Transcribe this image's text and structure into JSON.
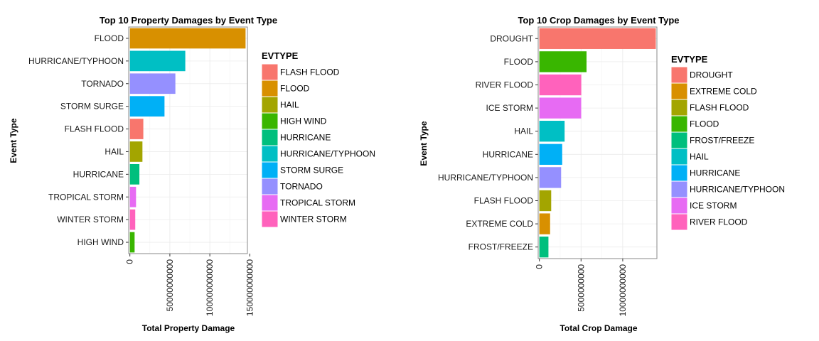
{
  "chart_data": [
    {
      "type": "bar",
      "orientation": "horizontal",
      "title": "Top 10 Property Damages by Event Type",
      "xlabel": "Total Property Damage",
      "ylabel": "Event Type",
      "categories": [
        "FLOOD",
        "HURRICANE/TYPHOON",
        "TORNADO",
        "STORM SURGE",
        "FLASH FLOOD",
        "HAIL",
        "HURRICANE",
        "TROPICAL STORM",
        "WINTER STORM",
        "HIGH WIND"
      ],
      "values": [
        144700000000,
        69300000000,
        56900000000,
        43300000000,
        16800000000,
        15700000000,
        11900000000,
        7700000000,
        6700000000,
        5900000000
      ],
      "colors": [
        "#D89000",
        "#00BFC4",
        "#9590FF",
        "#00B0F6",
        "#F8766D",
        "#A3A500",
        "#00BF7D",
        "#E76BF3",
        "#FF62BC",
        "#39B600"
      ],
      "xticks": [
        0,
        50000000000,
        100000000000,
        150000000000
      ],
      "xtick_labels": [
        "0",
        "50000000000",
        "100000000000",
        "150000000000"
      ],
      "xlim": [
        -1500000000,
        147000000000
      ],
      "grid": true,
      "legend": {
        "title": "EVTYPE",
        "position": "right",
        "items": [
          {
            "label": "FLASH FLOOD",
            "color": "#F8766D"
          },
          {
            "label": "FLOOD",
            "color": "#D89000"
          },
          {
            "label": "HAIL",
            "color": "#A3A500"
          },
          {
            "label": "HIGH WIND",
            "color": "#39B600"
          },
          {
            "label": "HURRICANE",
            "color": "#00BF7D"
          },
          {
            "label": "HURRICANE/TYPHOON",
            "color": "#00BFC4"
          },
          {
            "label": "STORM SURGE",
            "color": "#00B0F6"
          },
          {
            "label": "TORNADO",
            "color": "#9590FF"
          },
          {
            "label": "TROPICAL STORM",
            "color": "#E76BF3"
          },
          {
            "label": "WINTER STORM",
            "color": "#FF62BC"
          }
        ]
      }
    },
    {
      "type": "bar",
      "orientation": "horizontal",
      "title": "Top 10 Crop Damages by Event Type",
      "xlabel": "Total Crop Damage",
      "ylabel": "Event Type",
      "categories": [
        "DROUGHT",
        "FLOOD",
        "RIVER FLOOD",
        "ICE STORM",
        "HAIL",
        "HURRICANE",
        "HURRICANE/TYPHOON",
        "FLASH FLOOD",
        "EXTREME COLD",
        "FROST/FREEZE"
      ],
      "values": [
        13970000000,
        5660000000,
        5030000000,
        5020000000,
        3030000000,
        2740000000,
        2610000000,
        1420000000,
        1290000000,
        1090000000
      ],
      "colors": [
        "#F8766D",
        "#39B600",
        "#FF62BC",
        "#E76BF3",
        "#00BFC4",
        "#00B0F6",
        "#9590FF",
        "#A3A500",
        "#D89000",
        "#00BF7D"
      ],
      "xticks": [
        0,
        5000000000,
        10000000000
      ],
      "xtick_labels": [
        "0",
        "5000000000",
        "10000000000"
      ],
      "xlim": [
        -140000000,
        14100000000
      ],
      "grid": true,
      "legend": {
        "title": "EVTYPE",
        "position": "right",
        "items": [
          {
            "label": "DROUGHT",
            "color": "#F8766D"
          },
          {
            "label": "EXTREME COLD",
            "color": "#D89000"
          },
          {
            "label": "FLASH FLOOD",
            "color": "#A3A500"
          },
          {
            "label": "FLOOD",
            "color": "#39B600"
          },
          {
            "label": "FROST/FREEZE",
            "color": "#00BF7D"
          },
          {
            "label": "HAIL",
            "color": "#00BFC4"
          },
          {
            "label": "HURRICANE",
            "color": "#00B0F6"
          },
          {
            "label": "HURRICANE/TYPHOON",
            "color": "#9590FF"
          },
          {
            "label": "ICE STORM",
            "color": "#E76BF3"
          },
          {
            "label": "RIVER FLOOD",
            "color": "#FF62BC"
          }
        ]
      }
    }
  ]
}
